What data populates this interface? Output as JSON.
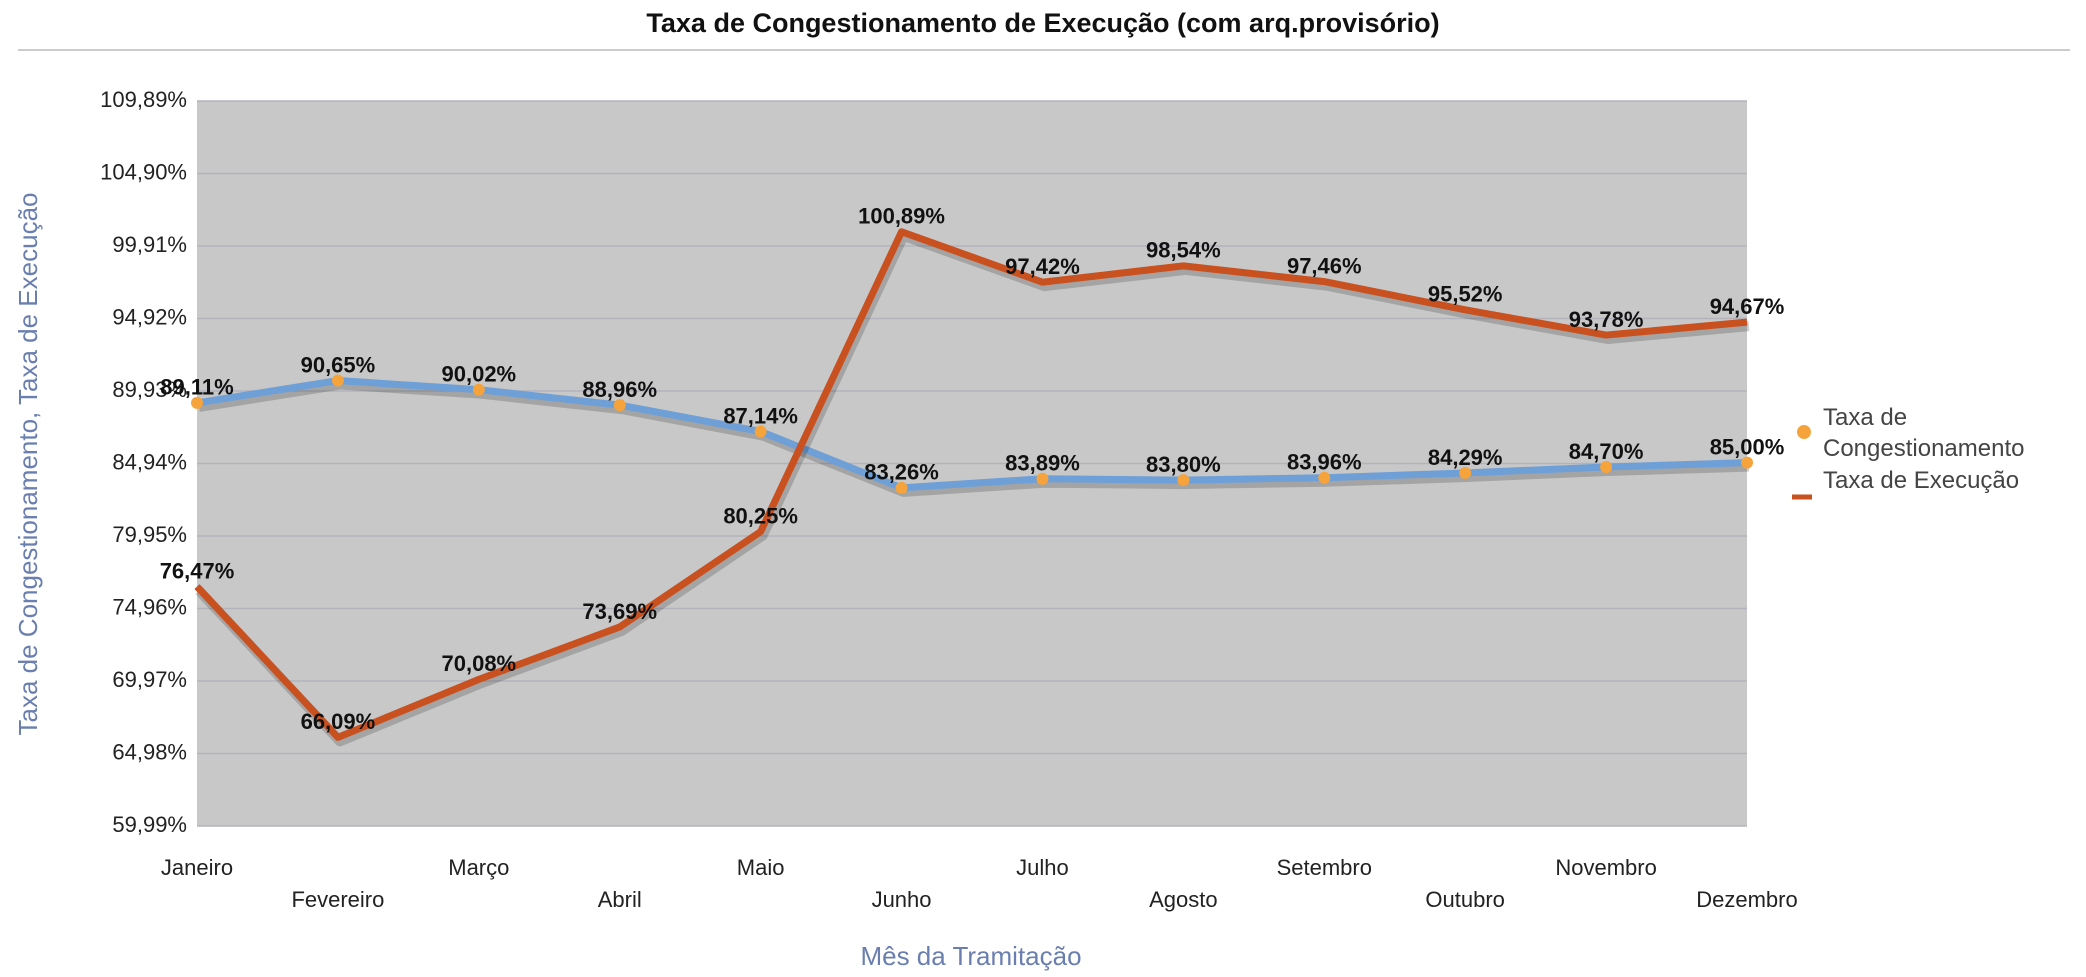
{
  "chart_data": {
    "type": "line",
    "title": "Taxa de Congestionamento de Execução (com arq.provisório)",
    "x_label": "Mês da Tramitação",
    "y_label": "Taxa de Congestionamento, Taxa de Execução",
    "categories": [
      "Janeiro",
      "Fevereiro",
      "Março",
      "Abril",
      "Maio",
      "Junho",
      "Julho",
      "Agosto",
      "Setembro",
      "Outubro",
      "Novembro",
      "Dezembro"
    ],
    "series": [
      {
        "name": "Taxa de Congestionamento",
        "color": "#6e9fd6",
        "marker_color": "#f5a33a",
        "values": [
          89.11,
          90.65,
          90.02,
          88.96,
          87.14,
          83.26,
          83.89,
          83.8,
          83.96,
          84.29,
          84.7,
          85.0
        ],
        "value_labels": [
          "89,11%",
          "90,65%",
          "90,02%",
          "88,96%",
          "87,14%",
          "83,26%",
          "83,89%",
          "83,80%",
          "83,96%",
          "84,29%",
          "84,70%",
          "85,00%"
        ]
      },
      {
        "name": "Taxa de Execução",
        "color": "#c9501f",
        "values": [
          76.47,
          66.09,
          70.08,
          73.69,
          80.25,
          100.89,
          97.42,
          98.54,
          97.46,
          95.52,
          93.78,
          94.67
        ],
        "value_labels": [
          "76,47%",
          "66,09%",
          "70,08%",
          "73,69%",
          "80,25%",
          "100,89%",
          "97,42%",
          "98,54%",
          "97,46%",
          "95,52%",
          "93,78%",
          "94,67%"
        ]
      }
    ],
    "ylim": [
      59.99,
      109.89
    ],
    "yticks": [
      {
        "value": 59.99,
        "label": "59,99%"
      },
      {
        "value": 64.98,
        "label": "64,98%"
      },
      {
        "value": 69.97,
        "label": "69,97%"
      },
      {
        "value": 74.96,
        "label": "74,96%"
      },
      {
        "value": 79.95,
        "label": "79,95%"
      },
      {
        "value": 84.94,
        "label": "84,94%"
      },
      {
        "value": 89.93,
        "label": "89,93%"
      },
      {
        "value": 94.92,
        "label": "94,92%"
      },
      {
        "value": 99.91,
        "label": "99,91%"
      },
      {
        "value": 104.9,
        "label": "104,90%"
      },
      {
        "value": 109.89,
        "label": "109,89%"
      }
    ],
    "grid": true,
    "legend": "right"
  }
}
